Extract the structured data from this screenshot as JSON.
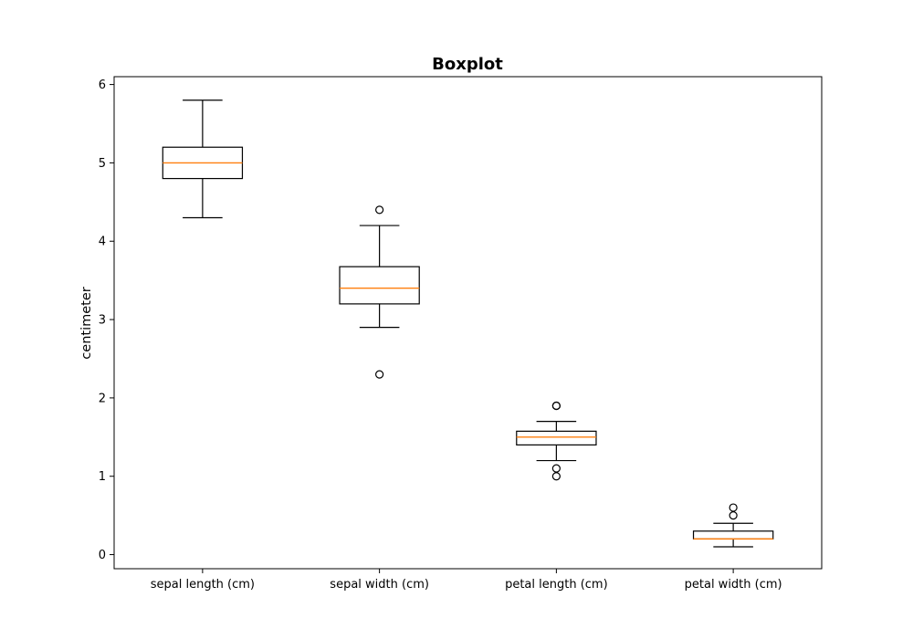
{
  "chart_data": {
    "type": "boxplot",
    "title": "Boxplot",
    "xlabel": "",
    "ylabel": "centimeter",
    "ylim": [
      -0.18,
      6.1
    ],
    "yticks": [
      0,
      1,
      2,
      3,
      4,
      5,
      6
    ],
    "grid": false,
    "colors": {
      "box": "#000000",
      "median": "#ff7f0e",
      "axes": "#000000"
    },
    "categories": [
      "sepal length (cm)",
      "sepal width (cm)",
      "petal length (cm)",
      "petal width (cm)"
    ],
    "boxes": [
      {
        "whisker_low": 4.3,
        "q1": 4.8,
        "median": 5.0,
        "q3": 5.2,
        "whisker_high": 5.8,
        "outliers": []
      },
      {
        "whisker_low": 2.9,
        "q1": 3.2,
        "median": 3.4,
        "q3": 3.675,
        "whisker_high": 4.2,
        "outliers": [
          4.4,
          2.3
        ]
      },
      {
        "whisker_low": 1.2,
        "q1": 1.4,
        "median": 1.5,
        "q3": 1.575,
        "whisker_high": 1.7,
        "outliers": [
          1.9,
          1.9,
          1.1,
          1.0
        ]
      },
      {
        "whisker_low": 0.1,
        "q1": 0.2,
        "median": 0.2,
        "q3": 0.3,
        "whisker_high": 0.4,
        "outliers": [
          0.6,
          0.5
        ]
      }
    ]
  }
}
